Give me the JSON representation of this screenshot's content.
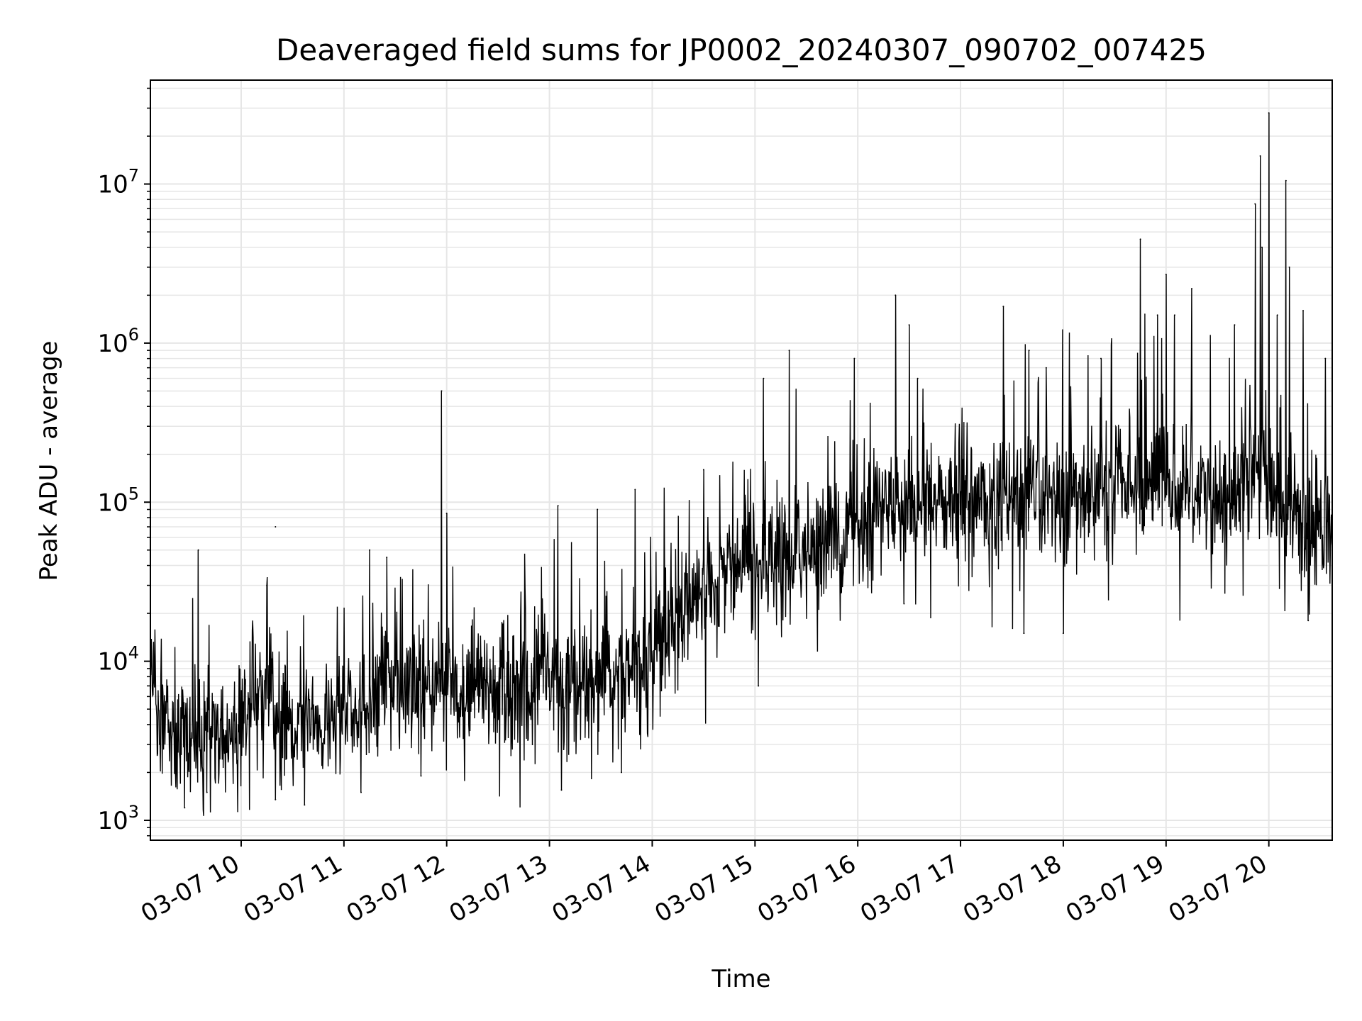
{
  "chart_data": {
    "type": "line",
    "title": "Deaveraged field sums for JP0002_20240307_090702_007425",
    "xlabel": "Time",
    "ylabel": "Peak ADU - average",
    "yscale": "log",
    "ylim": [
      750,
      45000000
    ],
    "xlim": [
      "2024-03-07 09:07",
      "2024-03-07 20:37"
    ],
    "grid": true,
    "line_color": "#000000",
    "grid_color": "#e6e6e6",
    "x_ticks": [
      "03-07 10",
      "03-07 11",
      "03-07 12",
      "03-07 13",
      "03-07 14",
      "03-07 15",
      "03-07 16",
      "03-07 17",
      "03-07 18",
      "03-07 19",
      "03-07 20"
    ],
    "y_ticks": [
      {
        "base": "10",
        "exp": "3",
        "value": 1000
      },
      {
        "base": "10",
        "exp": "4",
        "value": 10000
      },
      {
        "base": "10",
        "exp": "5",
        "value": 100000
      },
      {
        "base": "10",
        "exp": "6",
        "value": 1000000
      },
      {
        "base": "10",
        "exp": "7",
        "value": 10000000
      }
    ],
    "series": [
      {
        "trend": {
          "x": [
            "2024-03-07 09:07",
            "2024-03-07 09:12",
            "2024-03-07 09:20",
            "2024-03-07 09:40",
            "2024-03-07 10:00",
            "2024-03-07 10:15",
            "2024-03-07 10:30",
            "2024-03-07 10:50",
            "2024-03-07 11:10",
            "2024-03-07 11:30",
            "2024-03-07 11:50",
            "2024-03-07 12:10",
            "2024-03-07 12:30",
            "2024-03-07 12:50",
            "2024-03-07 13:10",
            "2024-03-07 13:30",
            "2024-03-07 13:50",
            "2024-03-07 14:10",
            "2024-03-07 14:30",
            "2024-03-07 14:50",
            "2024-03-07 15:10",
            "2024-03-07 15:30",
            "2024-03-07 15:50",
            "2024-03-07 16:10",
            "2024-03-07 16:40",
            "2024-03-07 17:10",
            "2024-03-07 17:40",
            "2024-03-07 18:10",
            "2024-03-07 18:40",
            "2024-03-07 19:10",
            "2024-03-07 19:40",
            "2024-03-07 19:55",
            "2024-03-07 20:10",
            "2024-03-07 20:37"
          ],
          "y": [
            9000,
            4500,
            3500,
            3400,
            4000,
            6500,
            4000,
            4200,
            5000,
            7000,
            8000,
            6000,
            6500,
            7000,
            7000,
            7000,
            9000,
            15000,
            28000,
            40000,
            40000,
            50000,
            60000,
            90000,
            100000,
            100000,
            100000,
            110000,
            130000,
            140000,
            110000,
            180000,
            90000,
            60000
          ]
        },
        "spikes": [
          {
            "x": "2024-03-07 09:35",
            "y": 50000
          },
          {
            "x": "2024-03-07 10:15",
            "y": 30000
          },
          {
            "x": "2024-03-07 10:20",
            "y": 70000
          },
          {
            "x": "2024-03-07 11:15",
            "y": 50000
          },
          {
            "x": "2024-03-07 11:25",
            "y": 45000
          },
          {
            "x": "2024-03-07 11:57",
            "y": 500000
          },
          {
            "x": "2024-03-07 12:00",
            "y": 85000
          },
          {
            "x": "2024-03-07 13:05",
            "y": 95000
          },
          {
            "x": "2024-03-07 13:28",
            "y": 90000
          },
          {
            "x": "2024-03-07 13:50",
            "y": 120000
          },
          {
            "x": "2024-03-07 14:30",
            "y": 160000
          },
          {
            "x": "2024-03-07 15:05",
            "y": 600000
          },
          {
            "x": "2024-03-07 15:20",
            "y": 900000
          },
          {
            "x": "2024-03-07 15:58",
            "y": 800000
          },
          {
            "x": "2024-03-07 16:22",
            "y": 2000000
          },
          {
            "x": "2024-03-07 16:30",
            "y": 1300000
          },
          {
            "x": "2024-03-07 16:35",
            "y": 600000
          },
          {
            "x": "2024-03-07 17:25",
            "y": 1700000
          },
          {
            "x": "2024-03-07 17:40",
            "y": 900000
          },
          {
            "x": "2024-03-07 17:50",
            "y": 700000
          },
          {
            "x": "2024-03-07 18:22",
            "y": 800000
          },
          {
            "x": "2024-03-07 18:45",
            "y": 4500000
          },
          {
            "x": "2024-03-07 18:55",
            "y": 1500000
          },
          {
            "x": "2024-03-07 19:00",
            "y": 2700000
          },
          {
            "x": "2024-03-07 19:05",
            "y": 1500000
          },
          {
            "x": "2024-03-07 19:15",
            "y": 2200000
          },
          {
            "x": "2024-03-07 19:40",
            "y": 1300000
          },
          {
            "x": "2024-03-07 19:52",
            "y": 7500000
          },
          {
            "x": "2024-03-07 19:55",
            "y": 15000000
          },
          {
            "x": "2024-03-07 19:56",
            "y": 4000000
          },
          {
            "x": "2024-03-07 20:00",
            "y": 28000000
          },
          {
            "x": "2024-03-07 20:05",
            "y": 1500000
          },
          {
            "x": "2024-03-07 20:10",
            "y": 10500000
          },
          {
            "x": "2024-03-07 20:12",
            "y": 3000000
          },
          {
            "x": "2024-03-07 20:20",
            "y": 1600000
          },
          {
            "x": "2024-03-07 20:33",
            "y": 800000
          }
        ],
        "dips": [
          {
            "x": "2024-03-07 09:27",
            "y": 1200
          },
          {
            "x": "2024-03-07 09:40",
            "y": 1500
          },
          {
            "x": "2024-03-07 10:20",
            "y": 1350
          },
          {
            "x": "2024-03-07 10:37",
            "y": 1250
          },
          {
            "x": "2024-03-07 11:10",
            "y": 1500
          },
          {
            "x": "2024-03-07 11:45",
            "y": 1900
          },
          {
            "x": "2024-03-07 13:07",
            "y": 1550
          },
          {
            "x": "2024-03-07 13:42",
            "y": 2000
          },
          {
            "x": "2024-03-07 15:02",
            "y": 7000
          },
          {
            "x": "2024-03-07 16:27",
            "y": 23000
          },
          {
            "x": "2024-03-07 17:37",
            "y": 15000
          },
          {
            "x": "2024-03-07 18:00",
            "y": 15000
          },
          {
            "x": "2024-03-07 20:23",
            "y": 18000
          }
        ]
      }
    ]
  }
}
